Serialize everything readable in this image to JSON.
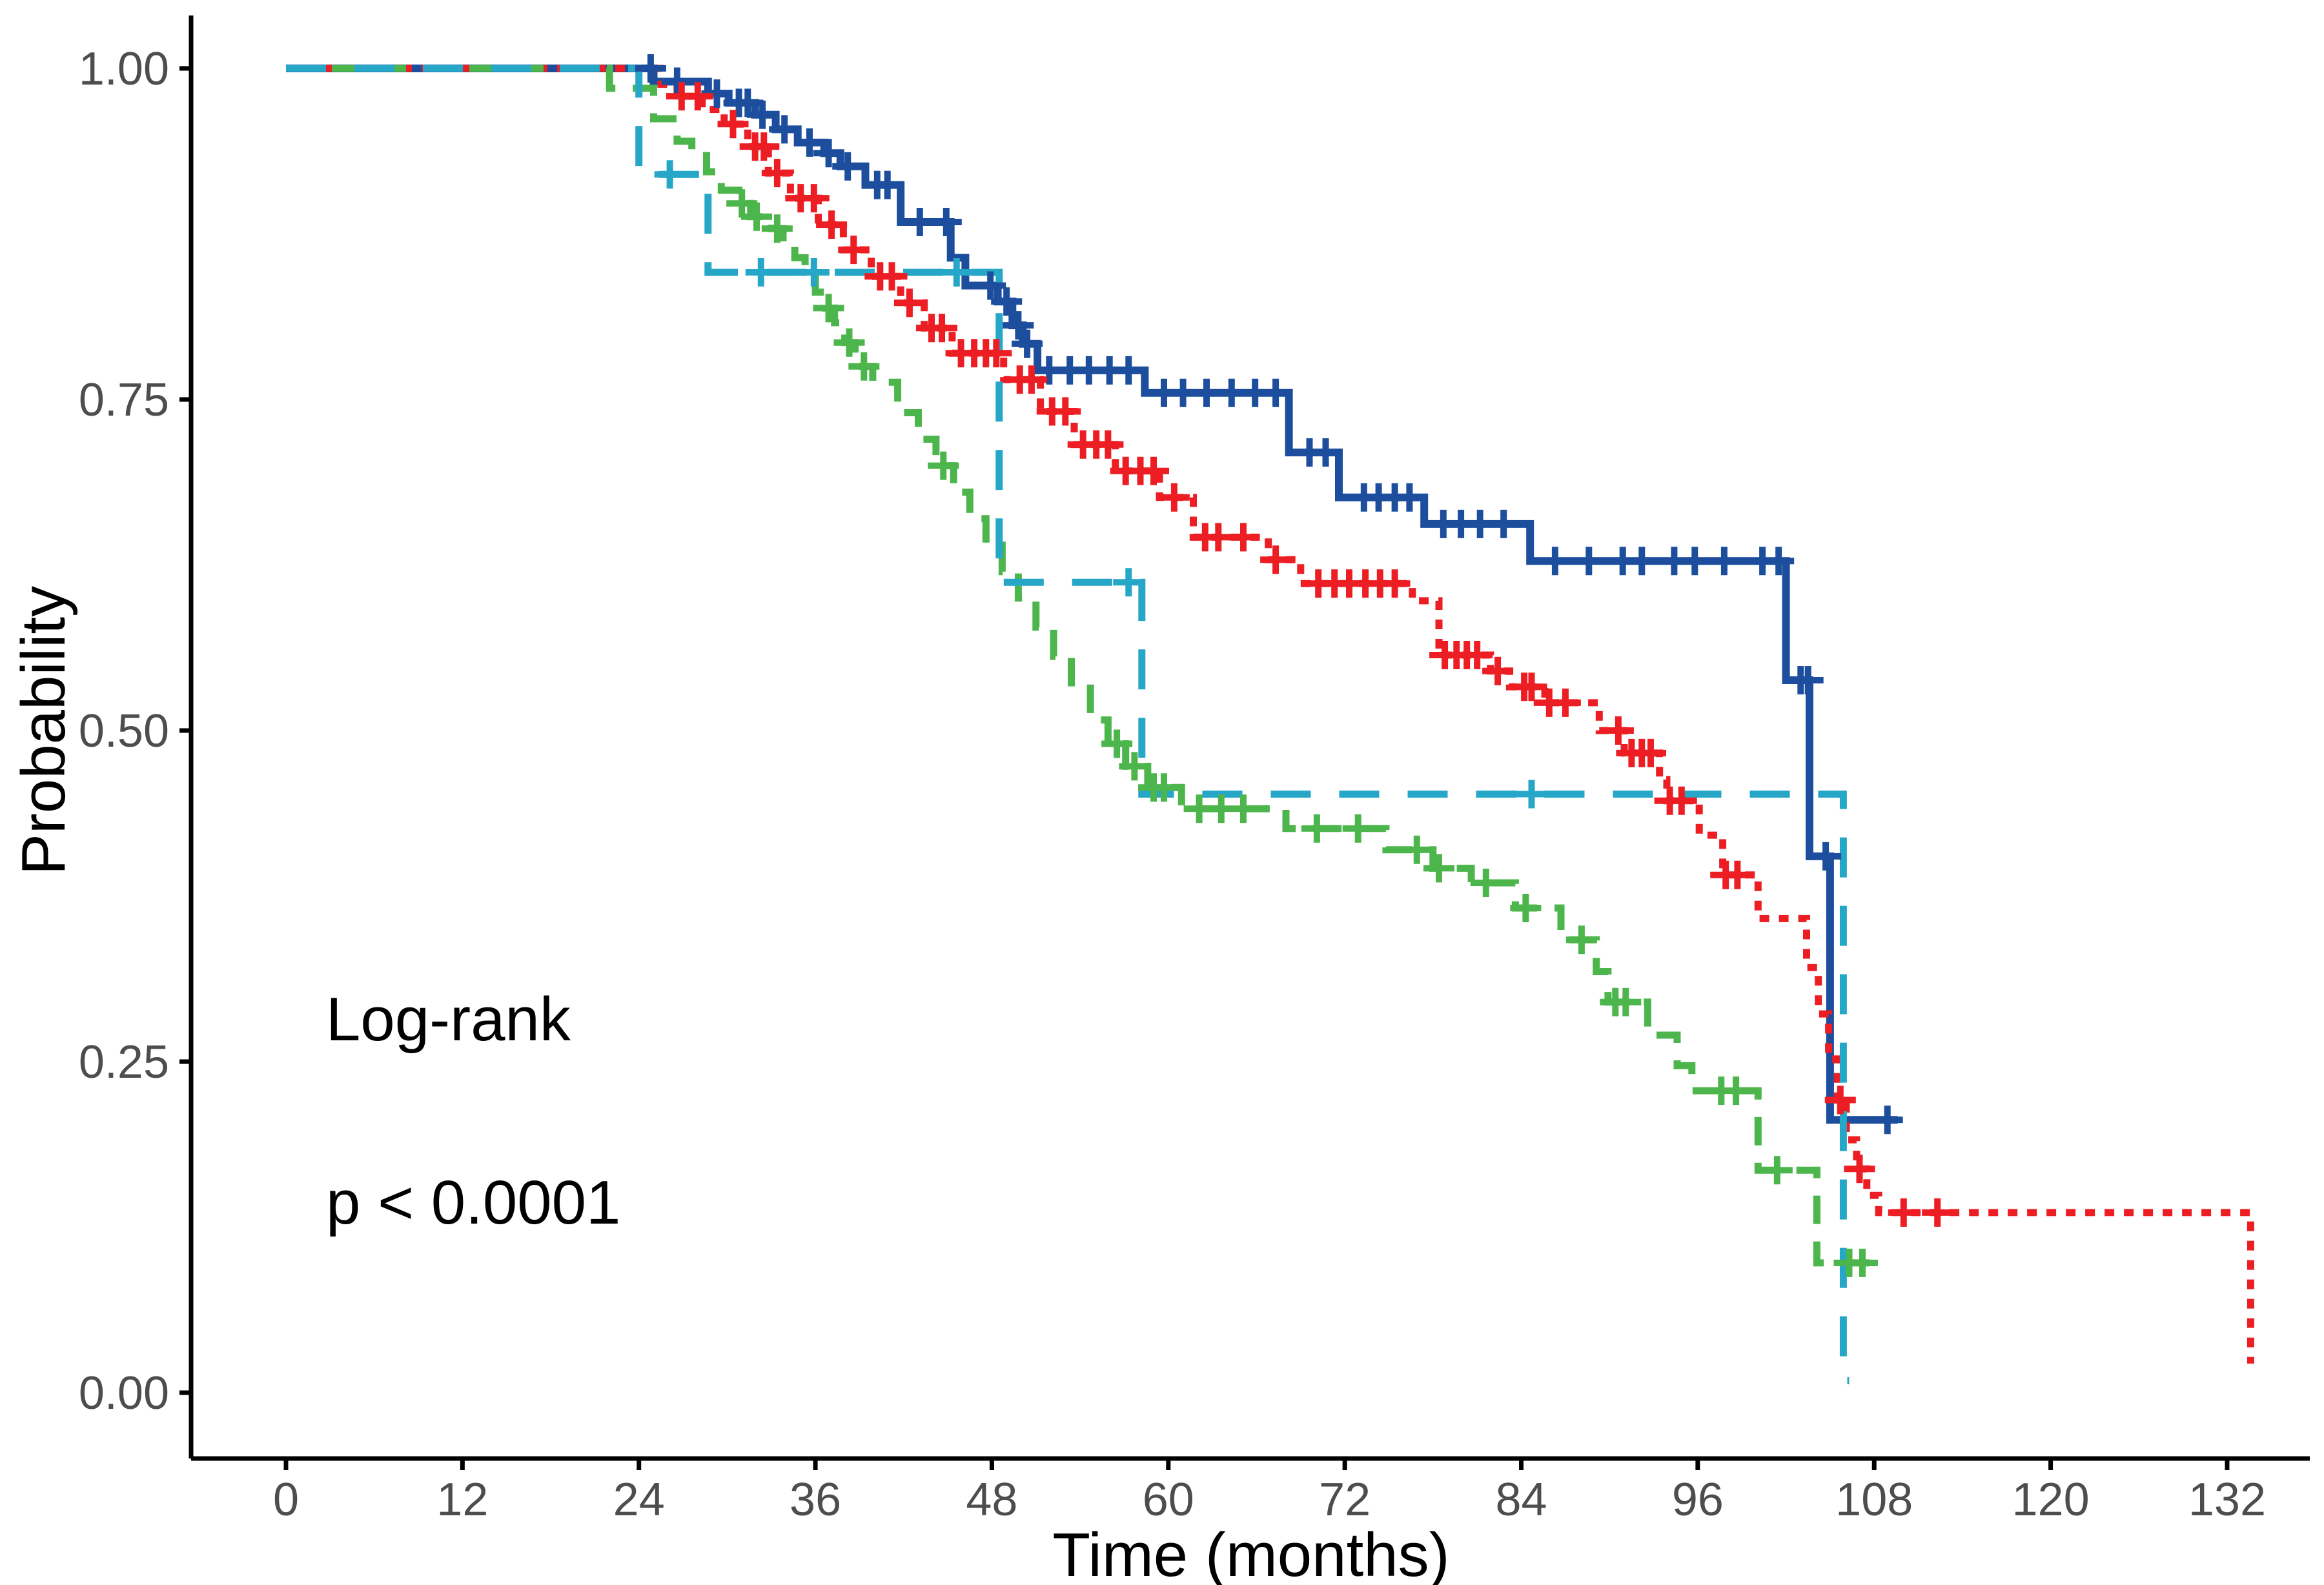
{
  "page": {
    "background": "#ffffff"
  },
  "chart_data": {
    "type": "line",
    "subtype": "kaplan_meier_step_curves",
    "title": "",
    "xlabel": "Time (months)",
    "ylabel": "Probability",
    "annotations": [
      {
        "text": "Log-rank"
      },
      {
        "text": "p < 0.0001"
      }
    ],
    "grid": false,
    "legend_position": "none",
    "xlim": [
      -6.5,
      138
    ],
    "ylim": [
      -0.05,
      1.05
    ],
    "x_ticks": {
      "values": [
        0,
        12,
        24,
        36,
        48,
        60,
        72,
        84,
        96,
        108,
        120,
        132
      ],
      "labels": [
        "0",
        "12",
        "24",
        "36",
        "48",
        "60",
        "72",
        "84",
        "96",
        "108",
        "120",
        "132"
      ]
    },
    "y_ticks": {
      "values": [
        0.0,
        0.25,
        0.5,
        0.75,
        1.0
      ],
      "labels": [
        "0.00",
        "0.25",
        "0.50",
        "0.75",
        "1.00"
      ]
    },
    "series": [
      {
        "id": "group-navy-solid",
        "color": "#1C4E9D",
        "dash": "solid",
        "line_width": 12,
        "steps": [
          [
            25,
            0.99
          ],
          [
            28.7,
            0.981
          ],
          [
            30.1,
            0.974
          ],
          [
            31.9,
            0.965
          ],
          [
            33.3,
            0.954
          ],
          [
            34.8,
            0.944
          ],
          [
            36.6,
            0.936
          ],
          [
            37.7,
            0.926
          ],
          [
            39.4,
            0.912
          ],
          [
            41.8,
            0.884
          ],
          [
            45.2,
            0.857
          ],
          [
            46.2,
            0.836
          ],
          [
            48.4,
            0.824
          ],
          [
            49.4,
            0.806
          ],
          [
            50.1,
            0.792
          ],
          [
            51.1,
            0.772
          ],
          [
            58.4,
            0.755
          ],
          [
            68.2,
            0.71
          ],
          [
            71.6,
            0.676
          ],
          [
            77.4,
            0.656
          ],
          [
            84.6,
            0.628
          ],
          [
            102.0,
            0.538
          ],
          [
            103.6,
            0.405
          ],
          [
            105.0,
            0.206
          ]
        ],
        "end_time": 109.6,
        "censor_times": [
          24.8,
          26.6,
          29.3,
          30.8,
          31.4,
          32.4,
          33.9,
          35.6,
          36.9,
          38.2,
          40.2,
          40.9,
          43.1,
          44.9,
          47.9,
          49.0,
          49.8,
          50.4,
          51.9,
          53.3,
          54.6,
          56.0,
          57.3,
          59.7,
          61.0,
          62.6,
          64.3,
          65.9,
          67.3,
          69.6,
          70.7,
          73.3,
          74.3,
          75.4,
          76.4,
          78.7,
          79.9,
          81.2,
          82.8,
          86.3,
          88.6,
          90.9,
          92.2,
          94.4,
          95.8,
          97.8,
          100.4,
          101.5,
          103.0,
          103.5,
          104.7,
          108.9
        ]
      },
      {
        "id": "group-red-dotted",
        "color": "#EC1E24",
        "dash": "dotted",
        "line_width": 11,
        "steps": [
          [
            25.5,
            0.988
          ],
          [
            26.6,
            0.979
          ],
          [
            28.3,
            0.969
          ],
          [
            29.8,
            0.958
          ],
          [
            31.4,
            0.941
          ],
          [
            32.8,
            0.921
          ],
          [
            34.3,
            0.902
          ],
          [
            36.2,
            0.882
          ],
          [
            37.9,
            0.863
          ],
          [
            39.8,
            0.843
          ],
          [
            41.8,
            0.823
          ],
          [
            43.4,
            0.804
          ],
          [
            45.3,
            0.785
          ],
          [
            48.8,
            0.765
          ],
          [
            51.3,
            0.741
          ],
          [
            53.6,
            0.716
          ],
          [
            56.4,
            0.696
          ],
          [
            59.4,
            0.676
          ],
          [
            61.7,
            0.646
          ],
          [
            66.8,
            0.629
          ],
          [
            69.0,
            0.611
          ],
          [
            76.6,
            0.598
          ],
          [
            78.4,
            0.557
          ],
          [
            81.9,
            0.545
          ],
          [
            83.2,
            0.533
          ],
          [
            85.6,
            0.521
          ],
          [
            89.3,
            0.5
          ],
          [
            91.0,
            0.483
          ],
          [
            93.4,
            0.463
          ],
          [
            93.9,
            0.447
          ],
          [
            96.1,
            0.421
          ],
          [
            97.7,
            0.391
          ],
          [
            100.1,
            0.358
          ],
          [
            103.4,
            0.321
          ],
          [
            104.2,
            0.286
          ],
          [
            104.9,
            0.252
          ],
          [
            105.5,
            0.221
          ],
          [
            106.1,
            0.191
          ],
          [
            106.8,
            0.169
          ],
          [
            107.5,
            0.149
          ],
          [
            108.3,
            0.136
          ],
          [
            133.6,
            0.022
          ]
        ],
        "end_time": 133.6,
        "censor_times": [
          26.9,
          28.0,
          30.4,
          31.9,
          32.5,
          33.4,
          35.0,
          35.9,
          37.1,
          38.6,
          40.4,
          41.2,
          42.4,
          43.9,
          44.6,
          45.9,
          46.8,
          47.6,
          48.3,
          49.9,
          50.7,
          52.1,
          53.0,
          54.2,
          55.1,
          55.9,
          57.1,
          58.1,
          59.0,
          60.4,
          62.5,
          63.4,
          65.1,
          67.3,
          70.2,
          71.3,
          72.3,
          73.4,
          74.4,
          75.4,
          78.8,
          79.6,
          80.3,
          81.0,
          82.4,
          84.2,
          84.7,
          85.9,
          87.0,
          90.6,
          91.5,
          92.2,
          92.8,
          94.1,
          94.9,
          97.9,
          98.7,
          105.7,
          107.0,
          110.0,
          112.3
        ]
      },
      {
        "id": "group-green-longdash",
        "color": "#4CB64C",
        "dash": "longdash",
        "line_width": 11,
        "steps": [
          [
            22.0,
            0.985
          ],
          [
            25.0,
            0.962
          ],
          [
            26.6,
            0.945
          ],
          [
            27.6,
            0.938
          ],
          [
            28.6,
            0.922
          ],
          [
            29.6,
            0.908
          ],
          [
            30.8,
            0.898
          ],
          [
            31.6,
            0.888
          ],
          [
            33.0,
            0.879
          ],
          [
            33.8,
            0.868
          ],
          [
            34.6,
            0.857
          ],
          [
            35.3,
            0.845
          ],
          [
            36.0,
            0.831
          ],
          [
            36.7,
            0.819
          ],
          [
            37.3,
            0.808
          ],
          [
            38.0,
            0.793
          ],
          [
            38.7,
            0.775
          ],
          [
            39.9,
            0.763
          ],
          [
            41.6,
            0.74
          ],
          [
            43.0,
            0.72
          ],
          [
            44.2,
            0.7
          ],
          [
            45.4,
            0.68
          ],
          [
            46.5,
            0.66
          ],
          [
            47.6,
            0.64
          ],
          [
            48.7,
            0.62
          ],
          [
            49.8,
            0.6
          ],
          [
            51.0,
            0.578
          ],
          [
            52.2,
            0.556
          ],
          [
            53.4,
            0.532
          ],
          [
            54.7,
            0.508
          ],
          [
            55.9,
            0.49
          ],
          [
            57.1,
            0.473
          ],
          [
            58.6,
            0.457
          ],
          [
            60.9,
            0.441
          ],
          [
            68.0,
            0.426
          ],
          [
            74.8,
            0.41
          ],
          [
            78.0,
            0.396
          ],
          [
            80.6,
            0.385
          ],
          [
            83.6,
            0.366
          ],
          [
            86.7,
            0.342
          ],
          [
            89.1,
            0.318
          ],
          [
            89.9,
            0.295
          ],
          [
            92.6,
            0.27
          ],
          [
            94.6,
            0.247
          ],
          [
            95.6,
            0.228
          ],
          [
            100.1,
            0.168
          ],
          [
            104.1,
            0.098
          ]
        ],
        "end_time": 107.9,
        "censor_times": [
          31.0,
          32.0,
          33.4,
          36.9,
          38.3,
          39.3,
          44.7,
          56.5,
          57.7,
          59.0,
          59.7,
          62.1,
          63.6,
          65.1,
          70.1,
          72.9,
          76.9,
          78.4,
          81.6,
          84.3,
          88.1,
          90.4,
          91.1,
          97.6,
          98.6,
          101.4,
          106.3,
          107.2
        ]
      },
      {
        "id": "group-cyan-dash",
        "color": "#27A7C7",
        "dash": "dash",
        "line_width": 11,
        "steps": [
          [
            24.0,
            0.92
          ],
          [
            28.7,
            0.846
          ],
          [
            48.5,
            0.612
          ],
          [
            58.2,
            0.452
          ],
          [
            105.9,
            0.009
          ]
        ],
        "end_time": 106.3,
        "censor_times": [
          26.1,
          32.3,
          35.9,
          45.6,
          57.3,
          84.7
        ]
      }
    ]
  }
}
